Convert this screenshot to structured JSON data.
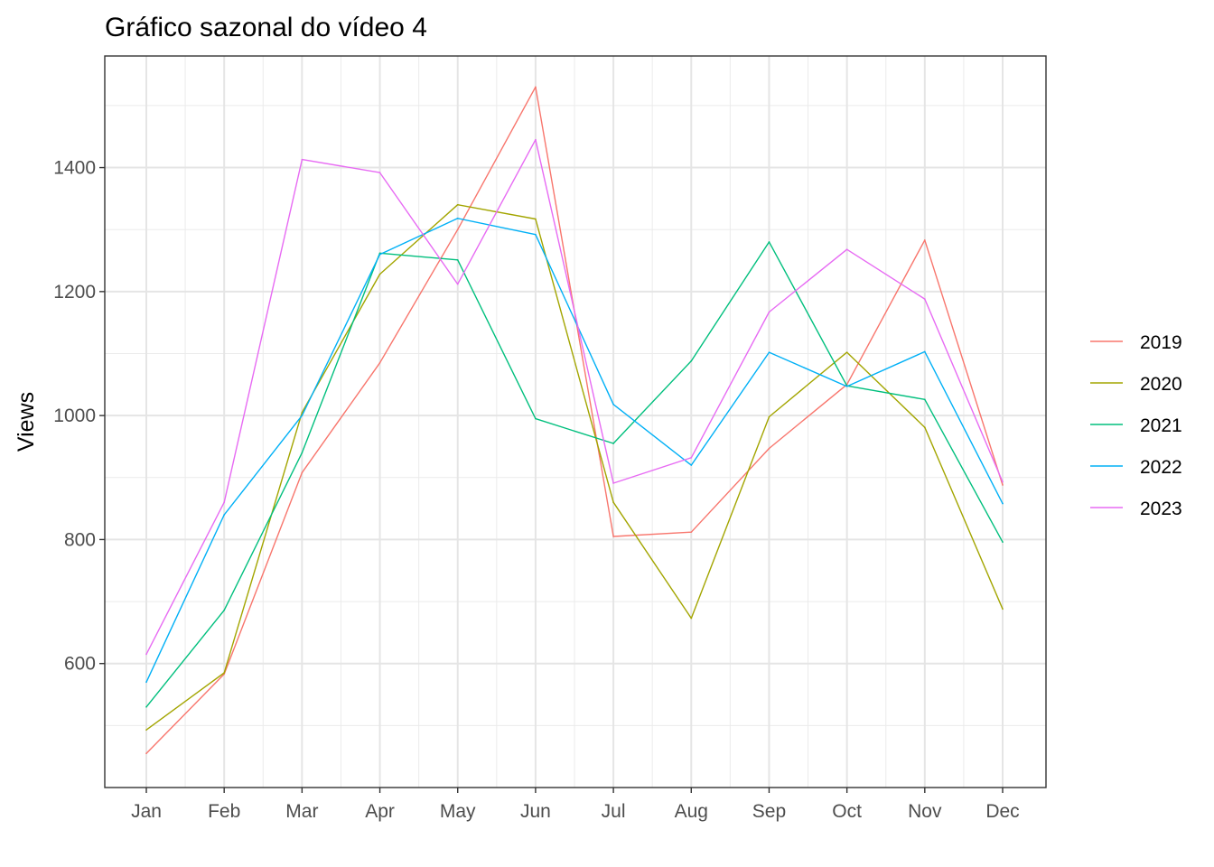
{
  "chart_data": {
    "type": "line",
    "title": "Gráfico sazonal do vídeo 4",
    "xlabel": "",
    "ylabel": "Views",
    "categories": [
      "Jan",
      "Feb",
      "Mar",
      "Apr",
      "May",
      "Jun",
      "Jul",
      "Aug",
      "Sep",
      "Oct",
      "Nov",
      "Dec"
    ],
    "ylim": [
      400,
      1580
    ],
    "yticks": [
      600,
      800,
      1000,
      1200,
      1400
    ],
    "grid": true,
    "legend_position": "right",
    "series": [
      {
        "name": "2019",
        "color": "#F8766D",
        "values": [
          455,
          583,
          908,
          1085,
          1300,
          1530,
          805,
          812,
          947,
          1050,
          1283,
          888
        ]
      },
      {
        "name": "2020",
        "color": "#A3A500",
        "values": [
          493,
          585,
          1005,
          1228,
          1340,
          1317,
          860,
          673,
          998,
          1102,
          981,
          688
        ]
      },
      {
        "name": "2021",
        "color": "#00BF7D",
        "values": [
          530,
          686,
          940,
          1262,
          1251,
          995,
          955,
          1088,
          1280,
          1048,
          1026,
          796
        ]
      },
      {
        "name": "2022",
        "color": "#00B0F6",
        "values": [
          570,
          840,
          1000,
          1260,
          1318,
          1292,
          1018,
          920,
          1102,
          1047,
          1103,
          858
        ]
      },
      {
        "name": "2023",
        "color": "#E76BF3",
        "values": [
          615,
          860,
          1413,
          1392,
          1212,
          1445,
          891,
          932,
          1167,
          1268,
          1188,
          893
        ]
      }
    ]
  }
}
